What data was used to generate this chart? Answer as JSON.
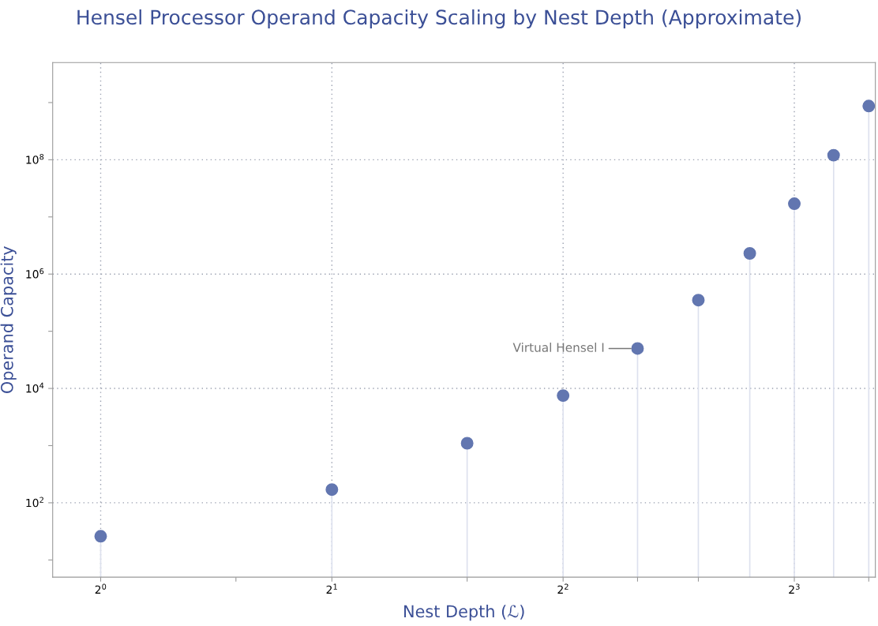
{
  "chart_data": {
    "type": "lollipop",
    "title": "Hensel Processor Operand Capacity Scaling by Nest Depth (Approximate)",
    "xlabel": "Nest Depth (ℒ)",
    "ylabel": "Operand Capacity",
    "x": [
      1,
      2,
      3,
      4,
      5,
      6,
      7,
      8,
      9,
      10
    ],
    "series": [
      {
        "color": "#6276b0",
        "values": [
          26,
          170,
          1100,
          7500,
          50000,
          350000,
          2300000,
          17000000,
          120000000,
          870000000
        ]
      }
    ],
    "annotations": [
      {
        "text": "Virtual Hensel I",
        "x": 5,
        "y": 50000
      }
    ],
    "log": "xy",
    "xlim": [
      0.866,
      10.2
    ],
    "ylim": [
      5,
      5000000000
    ],
    "xticks": [
      {
        "value": 1,
        "label": "2$^{0}$"
      },
      {
        "value": 1.5,
        "label": null
      },
      {
        "value": 2,
        "label": "2$^{1}$"
      },
      {
        "value": 3,
        "label": null
      },
      {
        "value": 4,
        "label": "2$^{2}$"
      },
      {
        "value": 5,
        "label": null
      },
      {
        "value": 6,
        "label": null
      },
      {
        "value": 8,
        "label": "2$^{3}$"
      },
      {
        "value": 10,
        "label": null
      }
    ],
    "yticks": [
      {
        "value": 10,
        "label": null
      },
      {
        "value": 100,
        "label": "10$^{2}$"
      },
      {
        "value": 1000,
        "label": null
      },
      {
        "value": 10000,
        "label": "10$^{4}$"
      },
      {
        "value": 100000,
        "label": null
      },
      {
        "value": 1000000,
        "label": "10$^{6}$"
      },
      {
        "value": 10000000,
        "label": null
      },
      {
        "value": 100000000,
        "label": "10$^{8}$"
      },
      {
        "value": 1000000000,
        "label": null
      }
    ],
    "grid": true,
    "marker": "circle"
  }
}
